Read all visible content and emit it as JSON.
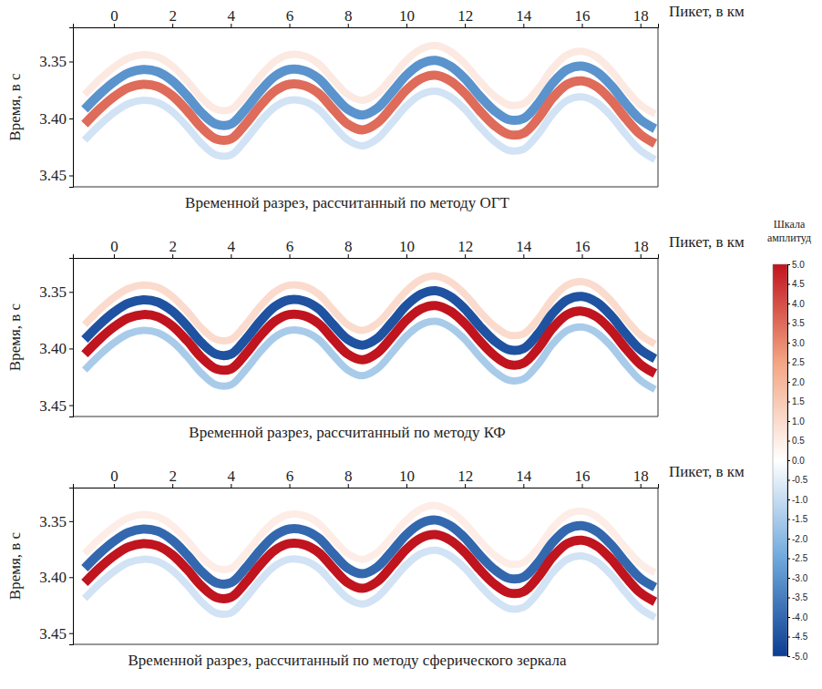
{
  "chart_data": [
    {
      "type": "line",
      "title": "Временной разрез, рассчитанный по методу ОГТ",
      "x_label": "Пикет, в км",
      "y_label": "Время, в с",
      "x": [
        -1.0,
        -0.5,
        0,
        0.5,
        1,
        1.5,
        2,
        2.5,
        3,
        3.5,
        4,
        4.5,
        5,
        5.5,
        6,
        6.5,
        7,
        7.5,
        8,
        8.5,
        9,
        9.5,
        10,
        10.5,
        11,
        11.5,
        12,
        12.5,
        13,
        13.5,
        14,
        14.5,
        15,
        15.5,
        16,
        16.5,
        17,
        17.5,
        18,
        18.5
      ],
      "xlim": [
        -1.4,
        18.6
      ],
      "xticks": [
        0,
        2,
        4,
        6,
        8,
        10,
        12,
        14,
        16,
        18
      ],
      "ylim": [
        3.32,
        3.46
      ],
      "yticks": [
        3.35,
        {
          "value": 3.4,
          "label": "3.40"
        },
        3.45
      ],
      "series": [
        {
          "amplitude": 0.6,
          "values": [
            3.379,
            3.366,
            3.355,
            3.347,
            3.344,
            3.346,
            3.354,
            3.367,
            3.382,
            3.392,
            3.392,
            3.379,
            3.363,
            3.35,
            3.344,
            3.345,
            3.352,
            3.366,
            3.379,
            3.384,
            3.378,
            3.364,
            3.349,
            3.339,
            3.336,
            3.341,
            3.352,
            3.367,
            3.38,
            3.388,
            3.387,
            3.374,
            3.356,
            3.344,
            3.341,
            3.346,
            3.358,
            3.374,
            3.388,
            3.396
          ]
        },
        {
          "amplitude": -0.8,
          "values": [
            3.419,
            3.406,
            3.395,
            3.387,
            3.384,
            3.386,
            3.394,
            3.407,
            3.422,
            3.432,
            3.432,
            3.419,
            3.403,
            3.39,
            3.384,
            3.385,
            3.392,
            3.406,
            3.419,
            3.424,
            3.418,
            3.404,
            3.389,
            3.379,
            3.376,
            3.381,
            3.392,
            3.407,
            3.42,
            3.428,
            3.427,
            3.414,
            3.396,
            3.384,
            3.381,
            3.386,
            3.398,
            3.414,
            3.428,
            3.436
          ]
        },
        {
          "amplitude": -3.0,
          "values": [
            3.392,
            3.379,
            3.368,
            3.36,
            3.357,
            3.359,
            3.367,
            3.38,
            3.395,
            3.405,
            3.405,
            3.392,
            3.376,
            3.363,
            3.357,
            3.358,
            3.365,
            3.379,
            3.392,
            3.397,
            3.391,
            3.377,
            3.362,
            3.352,
            3.349,
            3.354,
            3.365,
            3.38,
            3.393,
            3.401,
            3.4,
            3.387,
            3.369,
            3.357,
            3.354,
            3.359,
            3.371,
            3.387,
            3.401,
            3.409
          ]
        },
        {
          "amplitude": 3.5,
          "values": [
            3.405,
            3.392,
            3.381,
            3.373,
            3.37,
            3.372,
            3.38,
            3.393,
            3.408,
            3.418,
            3.418,
            3.405,
            3.389,
            3.376,
            3.37,
            3.371,
            3.378,
            3.392,
            3.405,
            3.41,
            3.404,
            3.39,
            3.375,
            3.365,
            3.362,
            3.367,
            3.378,
            3.393,
            3.406,
            3.414,
            3.413,
            3.4,
            3.382,
            3.37,
            3.367,
            3.372,
            3.384,
            3.4,
            3.414,
            3.422
          ]
        }
      ]
    },
    {
      "type": "line",
      "title": "Временной разрез, рассчитанный по методу КФ",
      "x_label": "Пикет, в км",
      "y_label": "Время, в с",
      "x": [
        -1.0,
        -0.5,
        0,
        0.5,
        1,
        1.5,
        2,
        2.5,
        3,
        3.5,
        4,
        4.5,
        5,
        5.5,
        6,
        6.5,
        7,
        7.5,
        8,
        8.5,
        9,
        9.5,
        10,
        10.5,
        11,
        11.5,
        12,
        12.5,
        13,
        13.5,
        14,
        14.5,
        15,
        15.5,
        16,
        16.5,
        17,
        17.5,
        18,
        18.5
      ],
      "xlim": [
        -1.4,
        18.6
      ],
      "xticks": [
        0,
        2,
        4,
        6,
        8,
        10,
        12,
        14,
        16,
        18
      ],
      "ylim": [
        3.32,
        3.46
      ],
      "yticks": [
        3.35,
        {
          "value": 3.4,
          "label": "3.40"
        },
        3.45
      ],
      "series": [
        {
          "amplitude": 1.0,
          "values": [
            3.379,
            3.366,
            3.355,
            3.347,
            3.344,
            3.346,
            3.354,
            3.367,
            3.382,
            3.392,
            3.392,
            3.379,
            3.363,
            3.35,
            3.344,
            3.345,
            3.352,
            3.366,
            3.379,
            3.384,
            3.378,
            3.364,
            3.349,
            3.339,
            3.336,
            3.341,
            3.352,
            3.367,
            3.38,
            3.388,
            3.387,
            3.374,
            3.356,
            3.344,
            3.341,
            3.346,
            3.358,
            3.374,
            3.388,
            3.396
          ]
        },
        {
          "amplitude": -1.5,
          "values": [
            3.419,
            3.406,
            3.395,
            3.387,
            3.384,
            3.386,
            3.394,
            3.407,
            3.422,
            3.432,
            3.432,
            3.419,
            3.403,
            3.39,
            3.384,
            3.385,
            3.392,
            3.406,
            3.419,
            3.424,
            3.418,
            3.404,
            3.389,
            3.379,
            3.376,
            3.381,
            3.392,
            3.407,
            3.42,
            3.428,
            3.427,
            3.414,
            3.396,
            3.384,
            3.381,
            3.386,
            3.398,
            3.414,
            3.428,
            3.436
          ]
        },
        {
          "amplitude": -4.5,
          "values": [
            3.392,
            3.379,
            3.368,
            3.36,
            3.357,
            3.359,
            3.367,
            3.38,
            3.395,
            3.405,
            3.405,
            3.392,
            3.376,
            3.363,
            3.357,
            3.358,
            3.365,
            3.379,
            3.392,
            3.397,
            3.391,
            3.377,
            3.362,
            3.352,
            3.349,
            3.354,
            3.365,
            3.38,
            3.393,
            3.401,
            3.4,
            3.387,
            3.369,
            3.357,
            3.354,
            3.359,
            3.371,
            3.387,
            3.401,
            3.409
          ]
        },
        {
          "amplitude": 5.0,
          "values": [
            3.405,
            3.392,
            3.381,
            3.373,
            3.37,
            3.372,
            3.38,
            3.393,
            3.408,
            3.418,
            3.418,
            3.405,
            3.389,
            3.376,
            3.37,
            3.371,
            3.378,
            3.392,
            3.405,
            3.41,
            3.404,
            3.39,
            3.375,
            3.365,
            3.362,
            3.367,
            3.378,
            3.393,
            3.406,
            3.414,
            3.413,
            3.4,
            3.382,
            3.37,
            3.367,
            3.372,
            3.384,
            3.4,
            3.414,
            3.422
          ]
        }
      ]
    },
    {
      "type": "line",
      "title": "Временной разрез, рассчитанный по методу сферического зеркала",
      "x_label": "Пикет, в км",
      "y_label": "Время, в с",
      "x": [
        -1.0,
        -0.5,
        0,
        0.5,
        1,
        1.5,
        2,
        2.5,
        3,
        3.5,
        4,
        4.5,
        5,
        5.5,
        6,
        6.5,
        7,
        7.5,
        8,
        8.5,
        9,
        9.5,
        10,
        10.5,
        11,
        11.5,
        12,
        12.5,
        13,
        13.5,
        14,
        14.5,
        15,
        15.5,
        16,
        16.5,
        17,
        17.5,
        18,
        18.5
      ],
      "xlim": [
        -1.4,
        18.6
      ],
      "xticks": [
        0,
        2,
        4,
        6,
        8,
        10,
        12,
        14,
        16,
        18
      ],
      "ylim": [
        3.32,
        3.46
      ],
      "yticks": [
        3.35,
        {
          "value": 3.4,
          "label": "3.40"
        },
        3.45
      ],
      "series": [
        {
          "amplitude": 0.5,
          "values": [
            3.379,
            3.366,
            3.355,
            3.347,
            3.344,
            3.346,
            3.354,
            3.367,
            3.382,
            3.392,
            3.392,
            3.379,
            3.363,
            3.35,
            3.344,
            3.345,
            3.352,
            3.366,
            3.379,
            3.384,
            3.378,
            3.364,
            3.349,
            3.339,
            3.336,
            3.341,
            3.352,
            3.367,
            3.38,
            3.388,
            3.387,
            3.374,
            3.356,
            3.344,
            3.341,
            3.346,
            3.358,
            3.374,
            3.388,
            3.396
          ]
        },
        {
          "amplitude": -0.8,
          "values": [
            3.419,
            3.406,
            3.395,
            3.387,
            3.384,
            3.386,
            3.394,
            3.407,
            3.422,
            3.432,
            3.432,
            3.419,
            3.403,
            3.39,
            3.384,
            3.385,
            3.392,
            3.406,
            3.419,
            3.424,
            3.418,
            3.404,
            3.389,
            3.379,
            3.376,
            3.381,
            3.392,
            3.407,
            3.42,
            3.428,
            3.427,
            3.414,
            3.396,
            3.384,
            3.381,
            3.386,
            3.398,
            3.414,
            3.428,
            3.436
          ]
        },
        {
          "amplitude": -4.0,
          "values": [
            3.392,
            3.379,
            3.368,
            3.36,
            3.357,
            3.359,
            3.367,
            3.38,
            3.395,
            3.405,
            3.405,
            3.392,
            3.376,
            3.363,
            3.357,
            3.358,
            3.365,
            3.379,
            3.392,
            3.397,
            3.391,
            3.377,
            3.362,
            3.352,
            3.349,
            3.354,
            3.365,
            3.38,
            3.393,
            3.401,
            3.4,
            3.387,
            3.369,
            3.357,
            3.354,
            3.359,
            3.371,
            3.387,
            3.401,
            3.409
          ]
        },
        {
          "amplitude": 5.0,
          "values": [
            3.405,
            3.392,
            3.381,
            3.373,
            3.37,
            3.372,
            3.38,
            3.393,
            3.408,
            3.418,
            3.418,
            3.405,
            3.389,
            3.376,
            3.37,
            3.371,
            3.378,
            3.392,
            3.405,
            3.41,
            3.404,
            3.39,
            3.375,
            3.365,
            3.362,
            3.367,
            3.378,
            3.393,
            3.406,
            3.414,
            3.413,
            3.4,
            3.382,
            3.37,
            3.367,
            3.372,
            3.384,
            3.4,
            3.414,
            3.422
          ]
        }
      ]
    }
  ],
  "colorbar": {
    "title": "Шкала амплитуд",
    "range": [
      -5,
      5
    ],
    "ticks": [
      {
        "value": 5,
        "label": "5.0"
      },
      {
        "value": 4.5,
        "label": "4.5"
      },
      {
        "value": 4,
        "label": "4.0"
      },
      {
        "value": 3.5,
        "label": "3.5"
      },
      {
        "value": 3,
        "label": "3.0"
      },
      {
        "value": 2.5,
        "label": "2.5"
      },
      {
        "value": 2,
        "label": "2.0"
      },
      {
        "value": 1.5,
        "label": "1.5"
      },
      {
        "value": 1,
        "label": "1.0"
      },
      {
        "value": 0.5,
        "label": "0.5"
      },
      {
        "value": 0,
        "label": "0.0"
      },
      {
        "value": -0.5,
        "label": "-0.5"
      },
      {
        "value": -1,
        "label": "-1.0"
      },
      {
        "value": -1.5,
        "label": "-1.5"
      },
      {
        "value": -2,
        "label": "-2.0"
      },
      {
        "value": -2.5,
        "label": "-2.5"
      },
      {
        "value": -3,
        "label": "-3.0"
      },
      {
        "value": -3.5,
        "label": "-3.5"
      },
      {
        "value": -4,
        "label": "-4.0"
      },
      {
        "value": -4.5,
        "label": "-4.5"
      },
      {
        "value": -5,
        "label": "-5.0"
      }
    ]
  }
}
